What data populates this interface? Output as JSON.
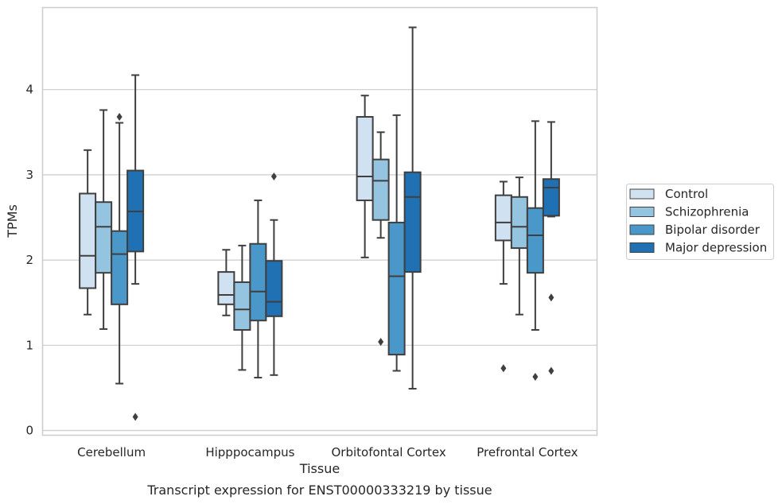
{
  "chart_data": {
    "type": "box",
    "xlabel": "Tissue",
    "ylabel": "TPMs",
    "caption": "Transcript expression for ENST00000333219 by tissue",
    "ylim": [
      -0.05,
      4.95
    ],
    "yticks": [
      "0",
      "1",
      "2",
      "3",
      "4"
    ],
    "grid": "horizontal",
    "legend_position": "right",
    "categories": [
      "Cerebellum",
      "Hipppocampus",
      "Orbitofontal Cortex",
      "Prefrontal Cortex"
    ],
    "series": [
      {
        "name": "Control",
        "color": "#d0e1f2",
        "boxes": [
          {
            "whislo": 1.36,
            "q1": 1.67,
            "med": 2.05,
            "q3": 2.78,
            "whishi": 3.29,
            "fliers": []
          },
          {
            "whislo": 1.35,
            "q1": 1.48,
            "med": 1.59,
            "q3": 1.86,
            "whishi": 2.12,
            "fliers": []
          },
          {
            "whislo": 2.03,
            "q1": 2.7,
            "med": 2.98,
            "q3": 3.68,
            "whishi": 3.93,
            "fliers": []
          },
          {
            "whislo": 1.72,
            "q1": 2.23,
            "med": 2.44,
            "q3": 2.76,
            "whishi": 2.92,
            "fliers": [
              0.73
            ]
          }
        ]
      },
      {
        "name": "Schizophrenia",
        "color": "#94c4df",
        "boxes": [
          {
            "whislo": 1.19,
            "q1": 1.85,
            "med": 2.39,
            "q3": 2.68,
            "whishi": 3.76,
            "fliers": []
          },
          {
            "whislo": 0.71,
            "q1": 1.18,
            "med": 1.42,
            "q3": 1.74,
            "whishi": 2.17,
            "fliers": []
          },
          {
            "whislo": 2.26,
            "q1": 2.47,
            "med": 2.93,
            "q3": 3.18,
            "whishi": 3.5,
            "fliers": [
              1.04
            ]
          },
          {
            "whislo": 1.36,
            "q1": 2.14,
            "med": 2.39,
            "q3": 2.74,
            "whishi": 2.97,
            "fliers": []
          }
        ]
      },
      {
        "name": "Bipolar disorder",
        "color": "#4a98c9",
        "boxes": [
          {
            "whislo": 0.55,
            "q1": 1.48,
            "med": 2.07,
            "q3": 2.34,
            "whishi": 3.61,
            "fliers": [
              3.68
            ]
          },
          {
            "whislo": 0.62,
            "q1": 1.29,
            "med": 1.63,
            "q3": 2.19,
            "whishi": 2.7,
            "fliers": []
          },
          {
            "whislo": 0.7,
            "q1": 0.89,
            "med": 1.81,
            "q3": 2.44,
            "whishi": 3.7,
            "fliers": []
          },
          {
            "whislo": 1.18,
            "q1": 1.85,
            "med": 2.29,
            "q3": 2.61,
            "whishi": 3.63,
            "fliers": [
              0.63
            ]
          }
        ]
      },
      {
        "name": "Major depression",
        "color": "#2070b4",
        "boxes": [
          {
            "whislo": 1.72,
            "q1": 2.1,
            "med": 2.57,
            "q3": 3.05,
            "whishi": 4.17,
            "fliers": [
              0.16
            ]
          },
          {
            "whislo": 0.65,
            "q1": 1.34,
            "med": 1.51,
            "q3": 1.99,
            "whishi": 2.47,
            "fliers": [
              2.98
            ]
          },
          {
            "whislo": 0.49,
            "q1": 1.86,
            "med": 2.74,
            "q3": 3.03,
            "whishi": 4.73,
            "fliers": []
          },
          {
            "whislo": 2.51,
            "q1": 2.52,
            "med": 2.85,
            "q3": 2.95,
            "whishi": 3.62,
            "fliers": [
              1.56,
              0.7
            ]
          }
        ]
      }
    ]
  }
}
